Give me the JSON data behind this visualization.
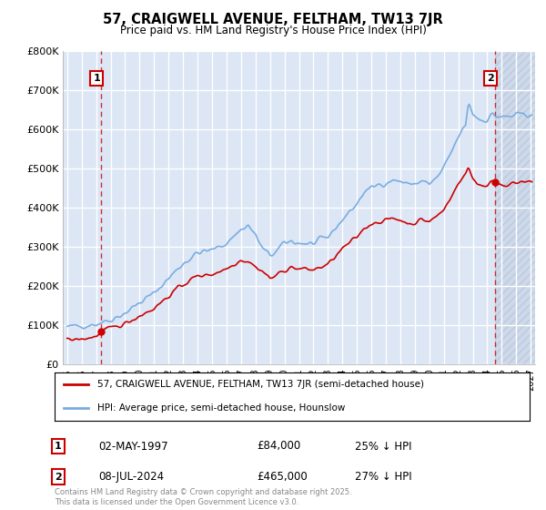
{
  "title": "57, CRAIGWELL AVENUE, FELTHAM, TW13 7JR",
  "subtitle": "Price paid vs. HM Land Registry's House Price Index (HPI)",
  "legend_line1": "57, CRAIGWELL AVENUE, FELTHAM, TW13 7JR (semi-detached house)",
  "legend_line2": "HPI: Average price, semi-detached house, Hounslow",
  "annotation1_label": "1",
  "annotation1_date": "02-MAY-1997",
  "annotation1_price": "£84,000",
  "annotation1_hpi": "25% ↓ HPI",
  "annotation2_label": "2",
  "annotation2_date": "08-JUL-2024",
  "annotation2_price": "£465,000",
  "annotation2_hpi": "27% ↓ HPI",
  "footer": "Contains HM Land Registry data © Crown copyright and database right 2025.\nThis data is licensed under the Open Government Licence v3.0.",
  "red_color": "#cc0000",
  "blue_color": "#7aade0",
  "bg_color": "#dce6f5",
  "grid_color": "#ffffff",
  "hatch_color": "#c8d4e8",
  "ylim": [
    0,
    800000
  ],
  "yticks": [
    0,
    100000,
    200000,
    300000,
    400000,
    500000,
    600000,
    700000,
    800000
  ],
  "ytick_labels": [
    "£0",
    "£100K",
    "£200K",
    "£300K",
    "£400K",
    "£500K",
    "£600K",
    "£700K",
    "£800K"
  ],
  "sale1_year": 1997.33,
  "sale1_price": 84000,
  "sale2_year": 2024.52,
  "sale2_price": 465000,
  "forecast_start": 2024.52,
  "xlim_left": 1994.7,
  "xlim_right": 2027.3,
  "xticks": [
    1995,
    1996,
    1997,
    1998,
    1999,
    2000,
    2001,
    2002,
    2003,
    2004,
    2005,
    2006,
    2007,
    2008,
    2009,
    2010,
    2011,
    2012,
    2013,
    2014,
    2015,
    2016,
    2017,
    2018,
    2019,
    2020,
    2021,
    2022,
    2023,
    2024,
    2025,
    2026,
    2027
  ]
}
